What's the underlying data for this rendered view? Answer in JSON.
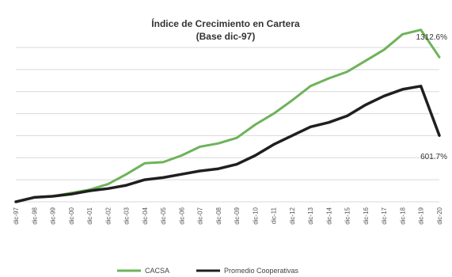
{
  "chart_data": {
    "type": "line",
    "title": "Índice de Crecimiento en Cartera",
    "subtitle": "(Base dic-97)",
    "categories": [
      "dic-97",
      "dic-98",
      "dic-99",
      "dic-00",
      "dic-01",
      "dic-02",
      "dic-03",
      "dic-04",
      "dic-05",
      "dic-06",
      "dic-07",
      "dic-08",
      "dic-09",
      "dic-10",
      "dic-11",
      "dic-12",
      "dic-13",
      "dic-14",
      "dic-15",
      "dic-16",
      "dic-17",
      "dic-18",
      "dic-19",
      "dic-20"
    ],
    "ylim": [
      0,
      1400
    ],
    "grid": true,
    "axis_labels_visible": false,
    "legend_position": "bottom",
    "series": [
      {
        "name": "CACSA",
        "color": "#6db35a",
        "values": [
          0,
          40,
          50,
          80,
          110,
          160,
          250,
          350,
          360,
          420,
          500,
          530,
          580,
          700,
          800,
          920,
          1050,
          1120,
          1180,
          1280,
          1380,
          1520,
          1560,
          1312.6
        ],
        "end_label": "1312.6%"
      },
      {
        "name": "Promedio Cooperativas",
        "color": "#1f1f1f",
        "values": [
          0,
          40,
          50,
          70,
          100,
          120,
          150,
          200,
          220,
          250,
          280,
          300,
          340,
          420,
          520,
          600,
          680,
          720,
          780,
          880,
          960,
          1020,
          1050,
          601.7
        ],
        "end_label": "601.7%"
      }
    ]
  }
}
